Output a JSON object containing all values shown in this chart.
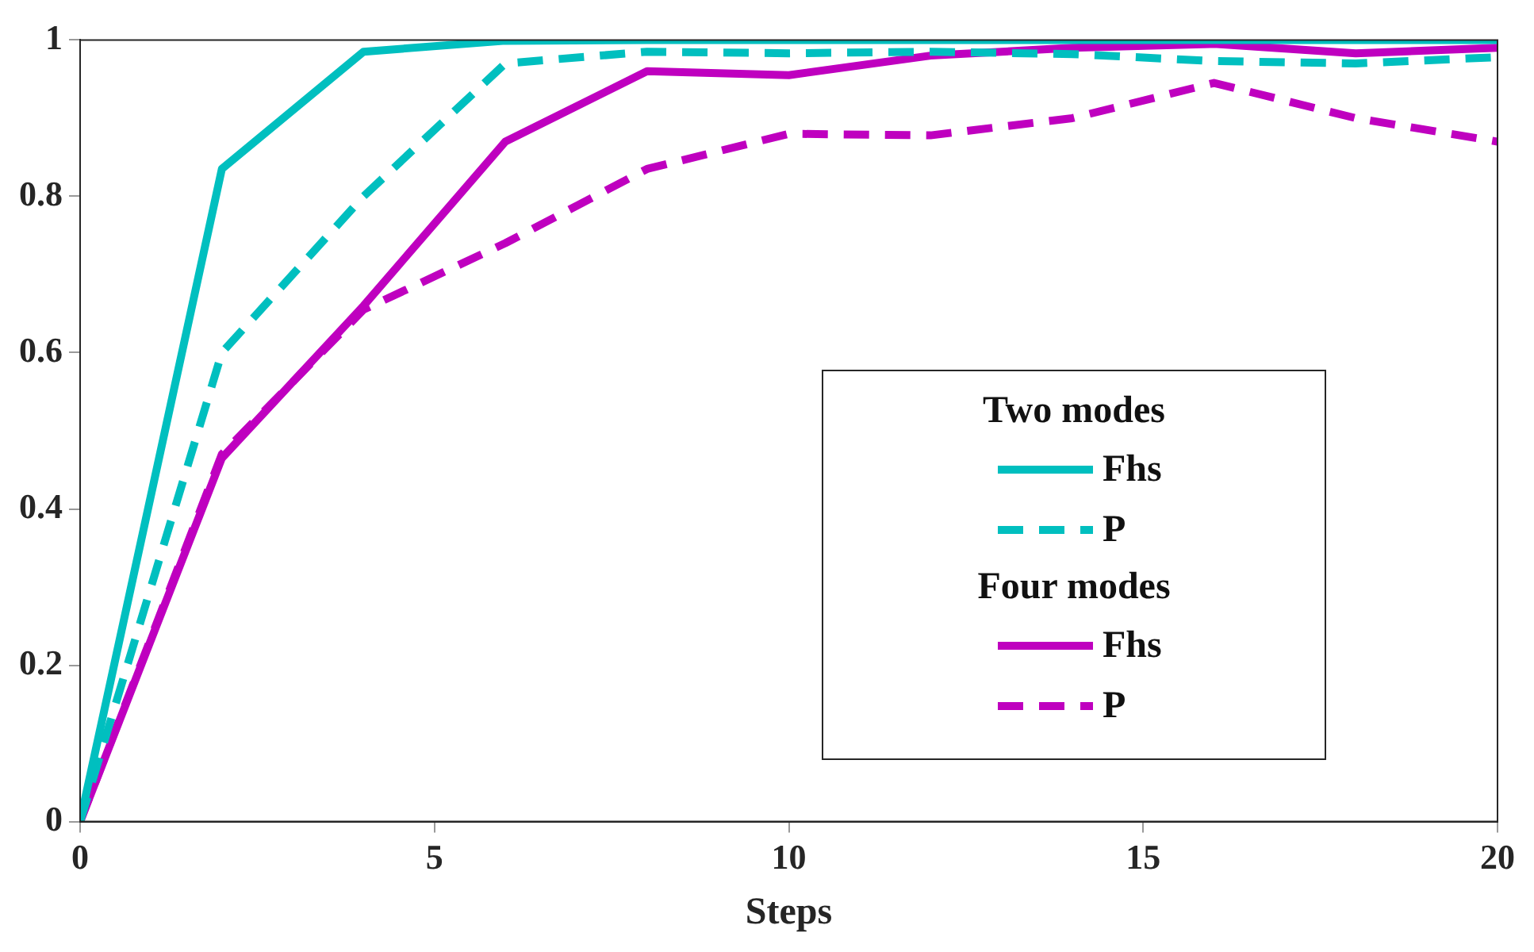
{
  "chart_data": {
    "type": "line",
    "xlabel": "Steps",
    "x": [
      0,
      2,
      4,
      6,
      8,
      10,
      12,
      14,
      16,
      18,
      20
    ],
    "series": [
      {
        "name": "Fhs",
        "color": "#00bfbf",
        "line_style": "solid",
        "values": [
          0,
          0.835,
          0.985,
          0.999,
          1,
          1,
          1,
          1,
          1,
          1,
          1
        ]
      },
      {
        "name": "P",
        "color": "#00bfbf",
        "line_style": "dashed",
        "values": [
          0,
          0.6,
          0.8,
          0.97,
          0.985,
          0.983,
          0.985,
          0.982,
          0.973,
          0.97,
          0.978
        ]
      },
      {
        "name": "Fhs",
        "color": "#bf00bf",
        "line_style": "solid",
        "values": [
          0,
          0.465,
          0.66,
          0.87,
          0.96,
          0.955,
          0.98,
          0.99,
          0.995,
          0.983,
          0.99
        ]
      },
      {
        "name": "P",
        "color": "#bf00bf",
        "line_style": "dashed",
        "values": [
          0,
          0.47,
          0.655,
          0.74,
          0.835,
          0.88,
          0.878,
          0.9,
          0.945,
          0.9,
          0.87
        ]
      }
    ],
    "annotations": [
      "Two modes",
      "Four modes"
    ],
    "xlim": [
      0,
      20
    ],
    "xticks": [
      0,
      5,
      10,
      15,
      20
    ],
    "ylim": [
      0,
      1
    ],
    "yticks": [
      0,
      0.2,
      0.4,
      0.6,
      0.8,
      1
    ],
    "grid": false,
    "legend": "bottom right",
    "marker": "none"
  }
}
